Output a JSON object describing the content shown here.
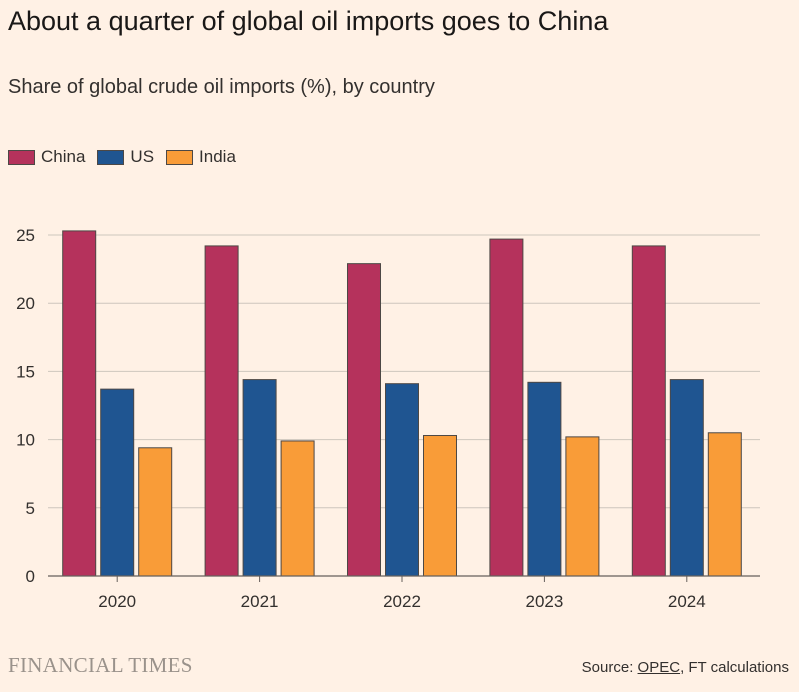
{
  "chart_data": {
    "type": "bar",
    "title": "About a quarter of global oil imports goes to China",
    "subtitle": "Share of global crude oil imports (%), by country",
    "categories": [
      "2020",
      "2021",
      "2022",
      "2023",
      "2024"
    ],
    "series": [
      {
        "name": "China",
        "color": "#B5325C",
        "values": [
          25.3,
          24.2,
          22.9,
          24.7,
          24.2
        ]
      },
      {
        "name": "US",
        "color": "#1F5591",
        "values": [
          13.7,
          14.4,
          14.1,
          14.2,
          14.4
        ]
      },
      {
        "name": "India",
        "color": "#F99C38",
        "values": [
          9.4,
          9.9,
          10.3,
          10.2,
          10.5
        ]
      }
    ],
    "xlabel": "",
    "ylabel": "",
    "ylim": [
      0,
      25
    ],
    "yticks": [
      0,
      5,
      10,
      15,
      20,
      25
    ],
    "grid": true,
    "legend": "top-left"
  },
  "footer": {
    "brand": "FINANCIAL TIMES",
    "source_prefix": "Source: ",
    "source_link": "OPEC",
    "source_suffix": ", FT calculations"
  }
}
